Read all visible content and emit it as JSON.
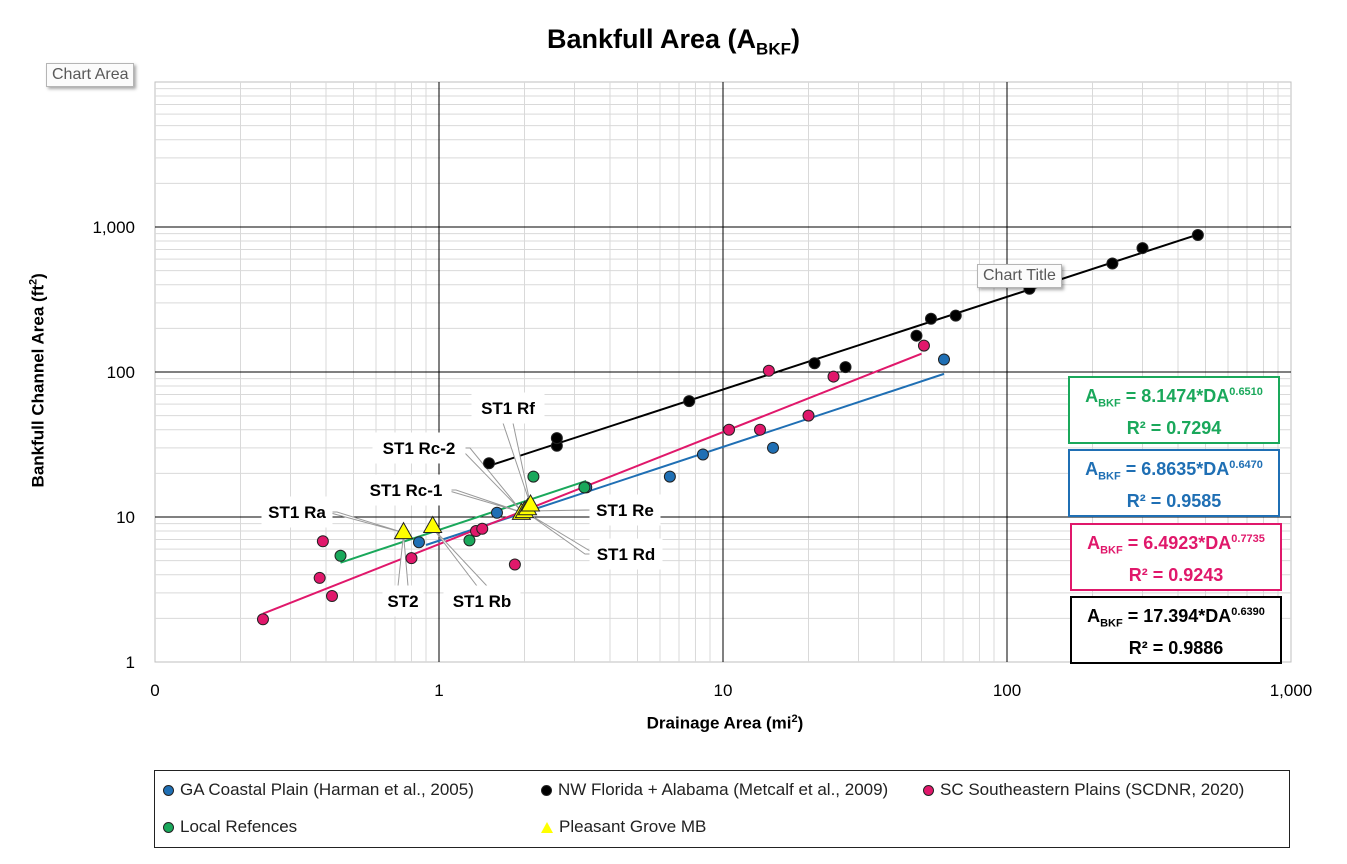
{
  "chart_data": {
    "type": "scatter",
    "title_main": "Bankfull Area (A",
    "title_sub": "BKF",
    "title_close": ")",
    "xlabel_main": "Drainage Area (mi",
    "xlabel_sup": "2",
    "xlabel_close": ")",
    "ylabel_main": "Bankfull Channel Area (ft",
    "ylabel_sup": "2",
    "ylabel_close": ")",
    "xscale": "log",
    "yscale": "log",
    "xlim": [
      0.1,
      1000
    ],
    "ylim": [
      1,
      10000
    ],
    "xticks": [
      {
        "value": 0.1,
        "label": "0"
      },
      {
        "value": 1,
        "label": "1"
      },
      {
        "value": 10,
        "label": "10"
      },
      {
        "value": 100,
        "label": "100"
      },
      {
        "value": 1000,
        "label": "1,000"
      }
    ],
    "yticks": [
      {
        "value": 1,
        "label": "1"
      },
      {
        "value": 10,
        "label": "10"
      },
      {
        "value": 100,
        "label": "100"
      },
      {
        "value": 1000,
        "label": "1,000"
      }
    ],
    "series": [
      {
        "name": "GA Coastal Plain (Harman et al., 2005)",
        "color": "#1f6fb4",
        "marker": "circle",
        "points": [
          [
            0.85,
            6.7
          ],
          [
            1.6,
            10.7
          ],
          [
            3.3,
            16.0
          ],
          [
            6.5,
            19.0
          ],
          [
            8.5,
            27.0
          ],
          [
            15.0,
            30.0
          ],
          [
            60.0,
            122.0
          ]
        ],
        "fit": {
          "a": 6.8635,
          "b": 0.647,
          "xmin": 0.9,
          "xmax": 60
        }
      },
      {
        "name": "NW Florida + Alabama (Metcalf et al., 2009)",
        "color": "#000000",
        "marker": "circle",
        "points": [
          [
            1.5,
            23.5
          ],
          [
            2.6,
            31.0
          ],
          [
            2.6,
            35.0
          ],
          [
            7.6,
            63.0
          ],
          [
            21.0,
            115.0
          ],
          [
            27.0,
            108.0
          ],
          [
            48.0,
            178.0
          ],
          [
            54.0,
            233.0
          ],
          [
            66.0,
            245.0
          ],
          [
            120.0,
            375.0
          ],
          [
            235.0,
            560.0
          ],
          [
            300.0,
            715.0
          ],
          [
            470.0,
            880.0
          ]
        ],
        "fit": {
          "a": 17.394,
          "b": 0.639,
          "xmin": 1.5,
          "xmax": 470
        }
      },
      {
        "name": "SC Southeastern Plains (SCDNR, 2020)",
        "color": "#e0186b",
        "marker": "circle",
        "points": [
          [
            0.24,
            1.97
          ],
          [
            0.38,
            3.8
          ],
          [
            0.39,
            6.8
          ],
          [
            0.42,
            2.85
          ],
          [
            0.8,
            5.2
          ],
          [
            1.35,
            8.0
          ],
          [
            1.42,
            8.3
          ],
          [
            1.85,
            4.7
          ],
          [
            10.5,
            40.0
          ],
          [
            13.5,
            40.0
          ],
          [
            14.5,
            102.0
          ],
          [
            20.0,
            50.0
          ],
          [
            24.5,
            93.0
          ],
          [
            51.0,
            152.0
          ]
        ],
        "fit": {
          "a": 6.4923,
          "b": 0.7735,
          "xmin": 0.24,
          "xmax": 50
        }
      },
      {
        "name": "Local Refences",
        "color": "#1aa85b",
        "marker": "circle",
        "points": [
          [
            0.45,
            5.4
          ],
          [
            1.28,
            6.9
          ],
          [
            2.15,
            19.0
          ],
          [
            3.25,
            16.0
          ]
        ],
        "fit": {
          "a": 8.1474,
          "b": 0.651,
          "xmin": 0.45,
          "xmax": 3.3
        }
      },
      {
        "name": "Pleasant Grove MB",
        "color": "#ffff00",
        "marker": "triangle",
        "points": [
          [
            0.75,
            7.8
          ],
          [
            0.95,
            8.6
          ],
          [
            1.95,
            10.6
          ],
          [
            2.0,
            10.9
          ],
          [
            2.05,
            11.4
          ],
          [
            2.1,
            12.1
          ]
        ]
      }
    ],
    "annotations": [
      {
        "label": "ST1 Rf",
        "x": 2.1,
        "y": 12.1
      },
      {
        "label": "ST1 Rc-2",
        "x": 1.95,
        "y": 11.0
      },
      {
        "label": "ST1 Rc-1",
        "x": 1.98,
        "y": 10.7
      },
      {
        "label": "ST1 Ra",
        "x": 0.75,
        "y": 7.8
      },
      {
        "label": "ST1 Re",
        "x": 2.05,
        "y": 11.0
      },
      {
        "label": "ST1 Rd",
        "x": 2.05,
        "y": 10.6
      },
      {
        "label": "ST2",
        "x": 0.75,
        "y": 7.6
      },
      {
        "label": "ST1 Rb",
        "x": 0.95,
        "y": 8.4
      }
    ],
    "equations": [
      {
        "prefix": "A",
        "sub": "BKF",
        "mid": " = 8.1474*DA",
        "sup": "0.6510",
        "r2": "R² = 0.7294",
        "color": "#1aa85b"
      },
      {
        "prefix": "A",
        "sub": "BKF",
        "mid": " = 6.8635*DA",
        "sup": "0.6470",
        "r2": "R² = 0.9585",
        "color": "#1f6fb4"
      },
      {
        "prefix": "A",
        "sub": "BKF",
        "mid": " = 6.4923*DA",
        "sup": "0.7735",
        "r2": "R² = 0.9243",
        "color": "#e0186b"
      },
      {
        "prefix": "A",
        "sub": "BKF",
        "mid": " = 17.394*DA",
        "sup": "0.6390",
        "r2": "R² = 0.9886",
        "color": "#000000"
      }
    ]
  },
  "tooltips": {
    "chart_area": "Chart Area",
    "chart_title": "Chart Title"
  }
}
